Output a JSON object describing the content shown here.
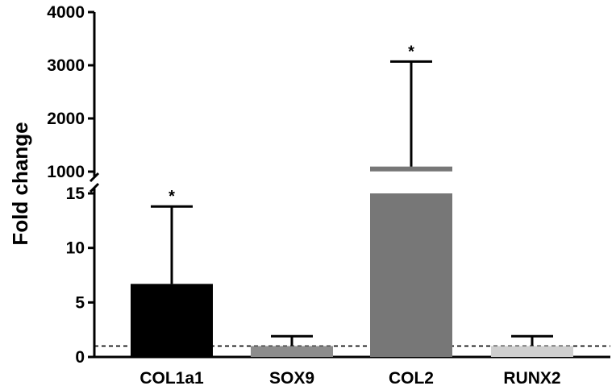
{
  "chart_data": {
    "type": "bar",
    "ylabel": "Fold change",
    "categories": [
      "COL1a1",
      "SOX9",
      "COL2",
      "RUNX2"
    ],
    "values": [
      6.7,
      1.0,
      1050,
      1.0
    ],
    "error_upper": [
      13.8,
      1.9,
      3070,
      1.9
    ],
    "significance": [
      "*",
      "",
      "*",
      ""
    ],
    "colors": [
      "#000000",
      "#8c8c8c",
      "#777777",
      "#cfcfcf"
    ],
    "reference_line": 1,
    "axis_break": true,
    "y_lower_range": [
      0,
      15
    ],
    "y_lower_ticks": [
      "0",
      "5",
      "10",
      "15"
    ],
    "y_upper_range": [
      1000,
      4000
    ],
    "y_upper_ticks": [
      "1000",
      "2000",
      "3000",
      "4000"
    ]
  }
}
